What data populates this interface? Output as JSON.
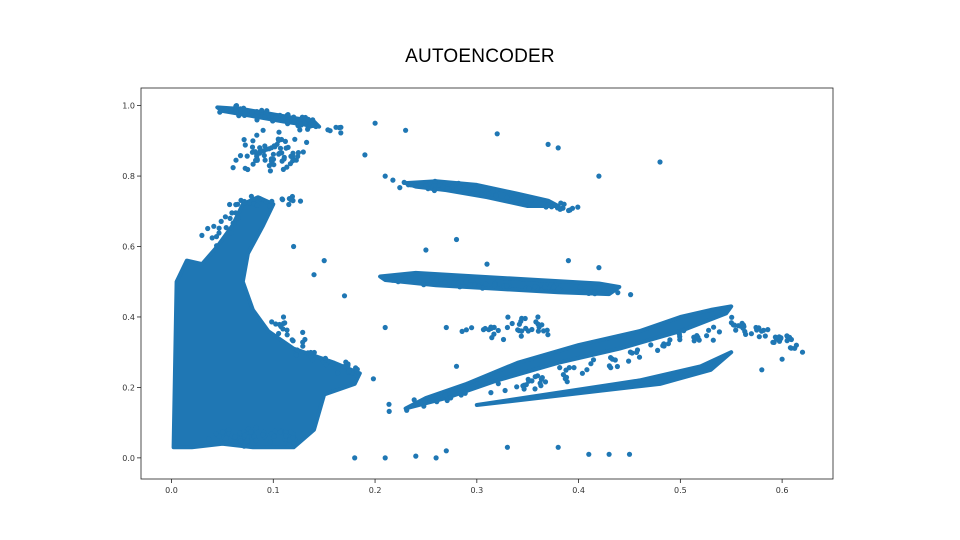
{
  "slide": {
    "title": "AUTOENCODER"
  },
  "chart_data": {
    "type": "scatter",
    "title": "",
    "xlabel": "",
    "ylabel": "",
    "xlim": [
      -0.03,
      0.65
    ],
    "ylim": [
      -0.06,
      1.05
    ],
    "xticks": [
      "0.0",
      "0.1",
      "0.2",
      "0.3",
      "0.4",
      "0.5",
      "0.6"
    ],
    "yticks": [
      "0.0",
      "0.2",
      "0.4",
      "0.6",
      "0.8",
      "1.0"
    ],
    "grid": false,
    "legend": "none",
    "marker_color": "#1f77b4",
    "series": [
      {
        "clusters": [
          {
            "description": "left dense column",
            "x_range": [
              0.0,
              0.03
            ],
            "y_range": [
              0.03,
              0.55
            ]
          },
          {
            "description": "left-bottom dense mass",
            "x_range": [
              0.0,
              0.15
            ],
            "y_range": [
              0.02,
              0.3
            ]
          },
          {
            "description": "diagonal arm rising",
            "path": [
              [
                0.02,
                0.45
              ],
              [
                0.05,
                0.7
              ],
              [
                0.09,
                0.74
              ]
            ]
          },
          {
            "description": "top curved band",
            "path": [
              [
                0.04,
                1.0
              ],
              [
                0.1,
                0.97
              ],
              [
                0.16,
                0.93
              ]
            ]
          },
          {
            "description": "horizontal band at 0.5",
            "path": [
              [
                0.2,
                0.51
              ],
              [
                0.3,
                0.5
              ],
              [
                0.44,
                0.47
              ]
            ]
          },
          {
            "description": "upper tilted band",
            "path": [
              [
                0.22,
                0.78
              ],
              [
                0.3,
                0.76
              ],
              [
                0.4,
                0.7
              ]
            ]
          },
          {
            "description": "lower-right diagonal streak",
            "path": [
              [
                0.23,
                0.13
              ],
              [
                0.4,
                0.22
              ],
              [
                0.55,
                0.41
              ],
              [
                0.61,
                0.33
              ]
            ]
          }
        ],
        "outliers": [
          [
            0.2,
            0.95
          ],
          [
            0.23,
            0.93
          ],
          [
            0.32,
            0.92
          ],
          [
            0.37,
            0.89
          ],
          [
            0.38,
            0.88
          ],
          [
            0.48,
            0.84
          ],
          [
            0.42,
            0.8
          ],
          [
            0.15,
            0.56
          ],
          [
            0.62,
            0.3
          ],
          [
            0.6,
            0.28
          ],
          [
            0.58,
            0.25
          ],
          [
            0.45,
            0.01
          ],
          [
            0.43,
            0.01
          ],
          [
            0.41,
            0.01
          ],
          [
            0.18,
            0.0
          ],
          [
            0.21,
            0.0
          ],
          [
            0.26,
            0.0
          ],
          [
            0.24,
            0.005
          ],
          [
            0.27,
            0.02
          ],
          [
            0.33,
            0.03
          ],
          [
            0.38,
            0.03
          ],
          [
            0.36,
            0.4
          ],
          [
            0.33,
            0.37
          ],
          [
            0.27,
            0.37
          ],
          [
            0.28,
            0.26
          ],
          [
            0.34,
            0.25
          ],
          [
            0.11,
            0.4
          ],
          [
            0.14,
            0.52
          ],
          [
            0.17,
            0.46
          ],
          [
            0.21,
            0.37
          ],
          [
            0.19,
            0.86
          ],
          [
            0.21,
            0.8
          ],
          [
            0.09,
            0.93
          ],
          [
            0.08,
            0.9
          ],
          [
            0.12,
            0.6
          ],
          [
            0.28,
            0.62
          ],
          [
            0.31,
            0.55
          ],
          [
            0.25,
            0.59
          ],
          [
            0.39,
            0.56
          ],
          [
            0.42,
            0.54
          ]
        ]
      }
    ]
  }
}
